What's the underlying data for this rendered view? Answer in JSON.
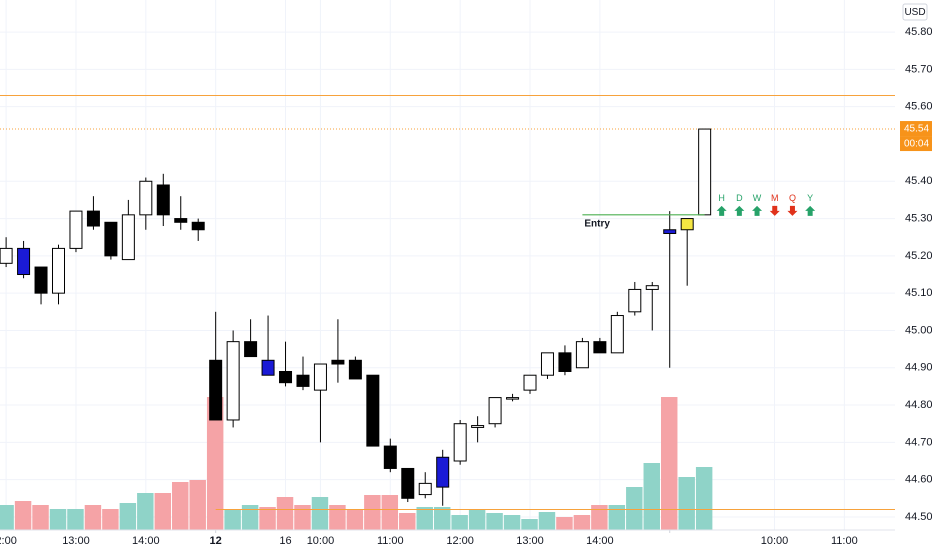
{
  "chart_data": {
    "type": "candlestick",
    "currency": "USD",
    "x": [
      0,
      1,
      2,
      3,
      4,
      5,
      6,
      7,
      8,
      9,
      10,
      11,
      12,
      13,
      14,
      15,
      16,
      17,
      18,
      19,
      20,
      21,
      22,
      23,
      24,
      25,
      26,
      27,
      28,
      29,
      30,
      31,
      32,
      33,
      34,
      35,
      36,
      37,
      38,
      39,
      40
    ],
    "open": [
      45.18,
      45.22,
      45.17,
      45.1,
      45.22,
      45.32,
      45.29,
      45.19,
      45.31,
      45.39,
      45.3,
      45.29,
      44.92,
      44.76,
      44.97,
      44.92,
      44.89,
      44.88,
      44.84,
      44.92,
      44.92,
      44.88,
      44.69,
      44.63,
      44.56,
      44.58,
      44.65,
      44.74,
      44.75,
      44.82,
      44.84,
      44.88,
      44.94,
      44.9,
      44.97,
      44.94,
      45.05,
      45.11,
      45.27,
      45.27,
      45.31
    ],
    "high": [
      45.25,
      45.24,
      45.17,
      45.23,
      45.32,
      45.36,
      45.29,
      45.35,
      45.41,
      45.42,
      45.36,
      45.3,
      45.05,
      45.0,
      45.03,
      45.04,
      44.97,
      44.93,
      44.91,
      45.03,
      44.93,
      44.88,
      44.71,
      44.63,
      44.62,
      44.68,
      44.76,
      44.77,
      44.82,
      44.83,
      44.88,
      44.94,
      44.96,
      44.98,
      44.98,
      45.05,
      45.13,
      45.13,
      45.32,
      45.3,
      45.54
    ],
    "low": [
      45.17,
      45.14,
      45.07,
      45.07,
      45.21,
      45.27,
      45.19,
      45.19,
      45.27,
      45.28,
      45.27,
      45.24,
      44.76,
      44.74,
      44.93,
      44.88,
      44.85,
      44.84,
      44.7,
      44.86,
      44.87,
      44.69,
      44.62,
      44.54,
      44.55,
      44.53,
      44.64,
      44.7,
      44.74,
      44.81,
      44.83,
      44.87,
      44.88,
      44.9,
      44.94,
      44.94,
      45.04,
      45.0,
      44.9,
      45.12,
      45.31
    ],
    "close": [
      45.22,
      45.15,
      45.1,
      45.22,
      45.32,
      45.28,
      45.2,
      45.31,
      45.4,
      45.31,
      45.29,
      45.27,
      44.76,
      44.97,
      44.93,
      44.88,
      44.86,
      44.85,
      44.91,
      44.91,
      44.87,
      44.69,
      44.63,
      44.55,
      44.59,
      44.66,
      44.75,
      44.745,
      44.82,
      44.82,
      44.88,
      44.94,
      44.89,
      44.97,
      44.94,
      45.04,
      45.11,
      45.12,
      45.26,
      45.3,
      45.54
    ],
    "candle_colors": [
      "#ffffff",
      "#1a1ad6",
      "#000000",
      "#ffffff",
      "#ffffff",
      "#000000",
      "#000000",
      "#ffffff",
      "#ffffff",
      "#000000",
      "#000000",
      "#000000",
      "#000000",
      "#ffffff",
      "#000000",
      "#1a1ad6",
      "#000000",
      "#000000",
      "#ffffff",
      "#000000",
      "#000000",
      "#000000",
      "#000000",
      "#000000",
      "#ffffff",
      "#1a1ad6",
      "#ffffff",
      "#ffffff",
      "#ffffff",
      "#ffffff",
      "#ffffff",
      "#ffffff",
      "#000000",
      "#ffffff",
      "#000000",
      "#ffffff",
      "#ffffff",
      "#ffffff",
      "#1a1ad6",
      "#f5e642",
      "#ffffff"
    ],
    "volume": [
      25,
      29,
      25,
      21,
      21,
      25,
      21,
      27,
      37,
      37,
      48,
      50,
      133,
      20,
      25,
      23,
      33,
      25,
      33,
      25,
      20,
      35,
      35,
      17,
      23,
      23,
      15,
      21,
      17,
      15,
      11,
      18,
      13,
      15,
      25,
      25,
      43,
      67,
      133,
      53,
      63
    ],
    "volume_colors": [
      "#8fd3c8",
      "#f5a3a6",
      "#f5a3a6",
      "#8fd3c8",
      "#8fd3c8",
      "#f5a3a6",
      "#f5a3a6",
      "#8fd3c8",
      "#8fd3c8",
      "#f5a3a6",
      "#f5a3a6",
      "#f5a3a6",
      "#f5a3a6",
      "#8fd3c8",
      "#8fd3c8",
      "#f5a3a6",
      "#f5a3a6",
      "#f5a3a6",
      "#8fd3c8",
      "#f5a3a6",
      "#f5a3a6",
      "#f5a3a6",
      "#f5a3a6",
      "#f5a3a6",
      "#8fd3c8",
      "#8fd3c8",
      "#8fd3c8",
      "#8fd3c8",
      "#8fd3c8",
      "#8fd3c8",
      "#8fd3c8",
      "#8fd3c8",
      "#f5a3a6",
      "#f5a3a6",
      "#f5a3a6",
      "#8fd3c8",
      "#8fd3c8",
      "#8fd3c8",
      "#f5a3a6",
      "#8fd3c8",
      "#8fd3c8"
    ],
    "y2lim": [
      0,
      530
    ],
    "xlim": [
      -0.35,
      50.9
    ],
    "xticks": [
      {
        "value": 0,
        "label": "2:00"
      },
      {
        "value": 4,
        "label": "13:00"
      },
      {
        "value": 8,
        "label": "14:00"
      },
      12,
      {
        "value": 18,
        "label": "10:00"
      },
      {
        "value": 22,
        "label": "11:00"
      },
      {
        "value": 26,
        "label": "12:00"
      },
      {
        "value": 30,
        "label": "13:00"
      },
      {
        "value": 34,
        "label": "14:00"
      },
      16,
      {
        "value": 44,
        "label": "10:00"
      },
      {
        "value": 48,
        "label": "11:00"
      }
    ],
    "xtick_bold_positions": [
      12,
      38
    ],
    "ylim": [
      44.465,
      45.886
    ],
    "yticks": [
      {
        "value": 44.5,
        "label": "44.50"
      },
      {
        "value": 44.6,
        "label": "44.60"
      },
      {
        "value": 44.7,
        "label": "44.70"
      },
      {
        "value": 44.8,
        "label": "44.80"
      },
      {
        "value": 44.9,
        "label": "44.90"
      },
      {
        "value": 45.0,
        "label": "45.00"
      },
      {
        "value": 45.1,
        "label": "45.10"
      },
      {
        "value": 45.2,
        "label": "45.20"
      },
      {
        "value": 45.3,
        "label": "45.30"
      },
      {
        "value": 45.4,
        "label": "45.40"
      },
      {
        "value": 45.6,
        "label": "45.60"
      },
      {
        "value": 45.7,
        "label": "45.70"
      },
      {
        "value": 45.8,
        "label": "45.80"
      }
    ],
    "levels": [
      {
        "value": 45.63,
        "color": "#f7a23b",
        "style": "solid",
        "from": -0.35
      },
      {
        "value": 45.54,
        "color": "#f7a23b",
        "style": "dotted",
        "from": -0.35
      },
      {
        "value": 44.52,
        "color": "#f7a23b",
        "style": "solid",
        "from": 12
      }
    ],
    "entry": {
      "label": "Entry",
      "value": 45.31,
      "from": 33,
      "to": 40,
      "color": "#4caf50"
    },
    "last_price": {
      "value": 45.54,
      "countdown": "00:04",
      "color": "#f7931a"
    },
    "signals": [
      {
        "label": "H",
        "direction": "up",
        "color": "#26a269"
      },
      {
        "label": "D",
        "direction": "up",
        "color": "#26a269"
      },
      {
        "label": "W",
        "direction": "up",
        "color": "#26a269"
      },
      {
        "label": "M",
        "direction": "down",
        "color": "#e0321b"
      },
      {
        "label": "Q",
        "direction": "down",
        "color": "#e0321b"
      },
      {
        "label": "Y",
        "direction": "up",
        "color": "#26a269"
      }
    ]
  }
}
